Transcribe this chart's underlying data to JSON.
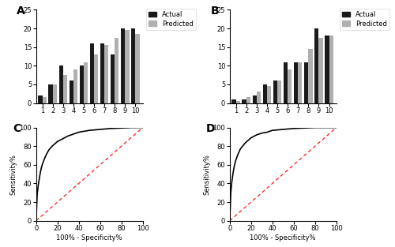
{
  "panel_A_actual": [
    2,
    5,
    10,
    6,
    10,
    16,
    16,
    13,
    20,
    20
  ],
  "panel_A_predicted": [
    1.5,
    5,
    7.5,
    9,
    11,
    13,
    15.5,
    17.5,
    19.5,
    18.5
  ],
  "panel_B_actual": [
    1,
    1,
    2,
    5,
    6,
    11,
    11,
    11,
    20,
    18
  ],
  "panel_B_predicted": [
    0.5,
    1.5,
    3,
    4.5,
    6,
    9,
    11,
    14.5,
    17.5,
    18
  ],
  "bar_color_actual": "#1a1a1a",
  "bar_color_predicted": "#b0b0b0",
  "ylim_bar": [
    0,
    25
  ],
  "yticks_bar": [
    0,
    5,
    10,
    15,
    20,
    25
  ],
  "xticks_bar": [
    1,
    2,
    3,
    4,
    5,
    6,
    7,
    8,
    9,
    10
  ],
  "xlabel_bar": "",
  "ylabel_bar": "",
  "legend_actual": "Actual",
  "legend_predicted": "Predicted",
  "roc_C_fpr": [
    0,
    0.01,
    0.02,
    0.03,
    0.04,
    0.05,
    0.06,
    0.08,
    0.1,
    0.12,
    0.15,
    0.18,
    0.2,
    0.25,
    0.3,
    0.35,
    0.4,
    0.5,
    0.6,
    0.7,
    0.8,
    0.9,
    1.0
  ],
  "roc_C_tpr": [
    0,
    0.28,
    0.38,
    0.45,
    0.52,
    0.57,
    0.61,
    0.67,
    0.72,
    0.76,
    0.8,
    0.83,
    0.85,
    0.88,
    0.91,
    0.93,
    0.95,
    0.97,
    0.98,
    0.99,
    0.995,
    1.0,
    1.0
  ],
  "roc_D_fpr": [
    0,
    0.01,
    0.02,
    0.03,
    0.04,
    0.05,
    0.06,
    0.08,
    0.1,
    0.12,
    0.15,
    0.18,
    0.2,
    0.25,
    0.3,
    0.35,
    0.4,
    0.5,
    0.6,
    0.7,
    0.8,
    0.9,
    1.0
  ],
  "roc_D_tpr": [
    0,
    0.3,
    0.42,
    0.5,
    0.57,
    0.62,
    0.66,
    0.72,
    0.77,
    0.8,
    0.84,
    0.87,
    0.89,
    0.92,
    0.94,
    0.95,
    0.97,
    0.98,
    0.99,
    0.995,
    1.0,
    1.0,
    1.0
  ],
  "roc_xlabel": "100% - Specificity%",
  "roc_ylabel": "Sensitivity%",
  "roc_xlim": [
    0,
    100
  ],
  "roc_ylim": [
    0,
    100
  ],
  "roc_xticks": [
    0,
    20,
    40,
    60,
    80,
    100
  ],
  "roc_yticks": [
    0,
    20,
    40,
    60,
    80,
    100
  ],
  "label_A": "A",
  "label_B": "B",
  "label_C": "C",
  "label_D": "D",
  "bg_color": "#ffffff",
  "line_color": "#000000",
  "diag_color": "#ff0000",
  "bar_width": 0.4
}
